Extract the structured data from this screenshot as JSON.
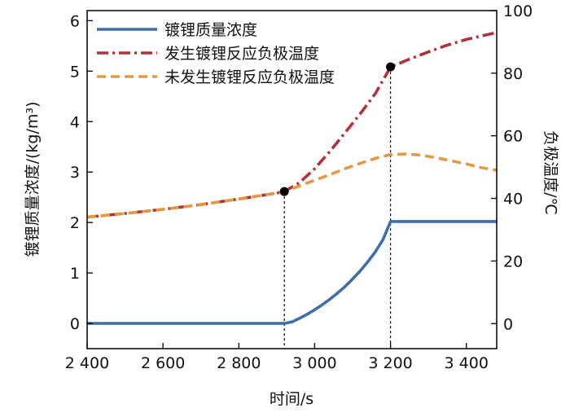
{
  "chart_data": {
    "type": "line",
    "title": "",
    "xlabel": "时间/s",
    "ylabel_left": "镀锂质量浓度/(kg/m³)",
    "ylabel_right": "负极温度/℃",
    "xlim": [
      2400,
      3480
    ],
    "ylim_left": [
      -0.5,
      6.2
    ],
    "ylim_right": [
      -8,
      100
    ],
    "x_ticks": [
      {
        "value": 2400,
        "label": "2 400"
      },
      {
        "value": 2600,
        "label": "2 600"
      },
      {
        "value": 2800,
        "label": "2 800"
      },
      {
        "value": 3000,
        "label": "3 000"
      },
      {
        "value": 3200,
        "label": "3 200"
      },
      {
        "value": 3400,
        "label": "3 400"
      }
    ],
    "y_left_ticks": [
      {
        "value": 0,
        "label": "0"
      },
      {
        "value": 1,
        "label": "1"
      },
      {
        "value": 2,
        "label": "2"
      },
      {
        "value": 3,
        "label": "3"
      },
      {
        "value": 4,
        "label": "4"
      },
      {
        "value": 5,
        "label": "5"
      },
      {
        "value": 6,
        "label": "6"
      }
    ],
    "y_right_ticks": [
      {
        "value": 0,
        "label": "0"
      },
      {
        "value": 20,
        "label": "20"
      },
      {
        "value": 40,
        "label": "40"
      },
      {
        "value": 60,
        "label": "60"
      },
      {
        "value": 80,
        "label": "80"
      },
      {
        "value": 100,
        "label": "100"
      }
    ],
    "grid": false,
    "legend_position": "top-left",
    "series": [
      {
        "name": "镀锂质量浓度",
        "axis": "left",
        "color": "#3f6faa",
        "style": "solid",
        "x": [
          2400,
          2800,
          2920,
          2940,
          2960,
          2980,
          3000,
          3020,
          3040,
          3060,
          3080,
          3100,
          3120,
          3140,
          3160,
          3180,
          3200,
          3300,
          3480
        ],
        "y": [
          0,
          0,
          0,
          0.03,
          0.1,
          0.18,
          0.27,
          0.37,
          0.48,
          0.6,
          0.73,
          0.88,
          1.04,
          1.22,
          1.42,
          1.66,
          2.02,
          2.02,
          2.02
        ]
      },
      {
        "name": "发生镀锂反应负极温度",
        "axis": "right",
        "color": "#b0333c",
        "style": "dashdot",
        "x": [
          2400,
          2500,
          2600,
          2700,
          2800,
          2900,
          2920,
          2960,
          3000,
          3040,
          3080,
          3120,
          3160,
          3200,
          3250,
          3300,
          3350,
          3400,
          3480
        ],
        "y": [
          34,
          35.2,
          36.5,
          38,
          39.8,
          41.7,
          42.2,
          45,
          49.5,
          55,
          61,
          67,
          73.5,
          82,
          84.5,
          86.8,
          89,
          90.8,
          93
        ]
      },
      {
        "name": "未发生镀锂反应负极温度",
        "axis": "right",
        "color": "#e29a42",
        "style": "dashed",
        "x": [
          2400,
          2500,
          2600,
          2700,
          2800,
          2900,
          2920,
          2960,
          3000,
          3040,
          3080,
          3120,
          3160,
          3200,
          3240,
          3280,
          3320,
          3360,
          3400,
          3440,
          3480
        ],
        "y": [
          34,
          35.2,
          36.5,
          38,
          39.8,
          41.7,
          42.2,
          44,
          45.8,
          47.6,
          49.5,
          51.2,
          52.8,
          54,
          54.2,
          53.8,
          53,
          52,
          51,
          49.8,
          49
        ]
      }
    ],
    "markers": [
      {
        "series": "发生镀锂反应负极温度",
        "x": 2920,
        "y": 42.2
      },
      {
        "series": "发生镀锂反应负极温度",
        "x": 3200,
        "y": 82
      }
    ],
    "reference_lines": [
      {
        "x": 2920,
        "to_series": "发生镀锂反应负极温度"
      },
      {
        "x": 3200,
        "to_series": "发生镀锂反应负极温度"
      }
    ]
  }
}
